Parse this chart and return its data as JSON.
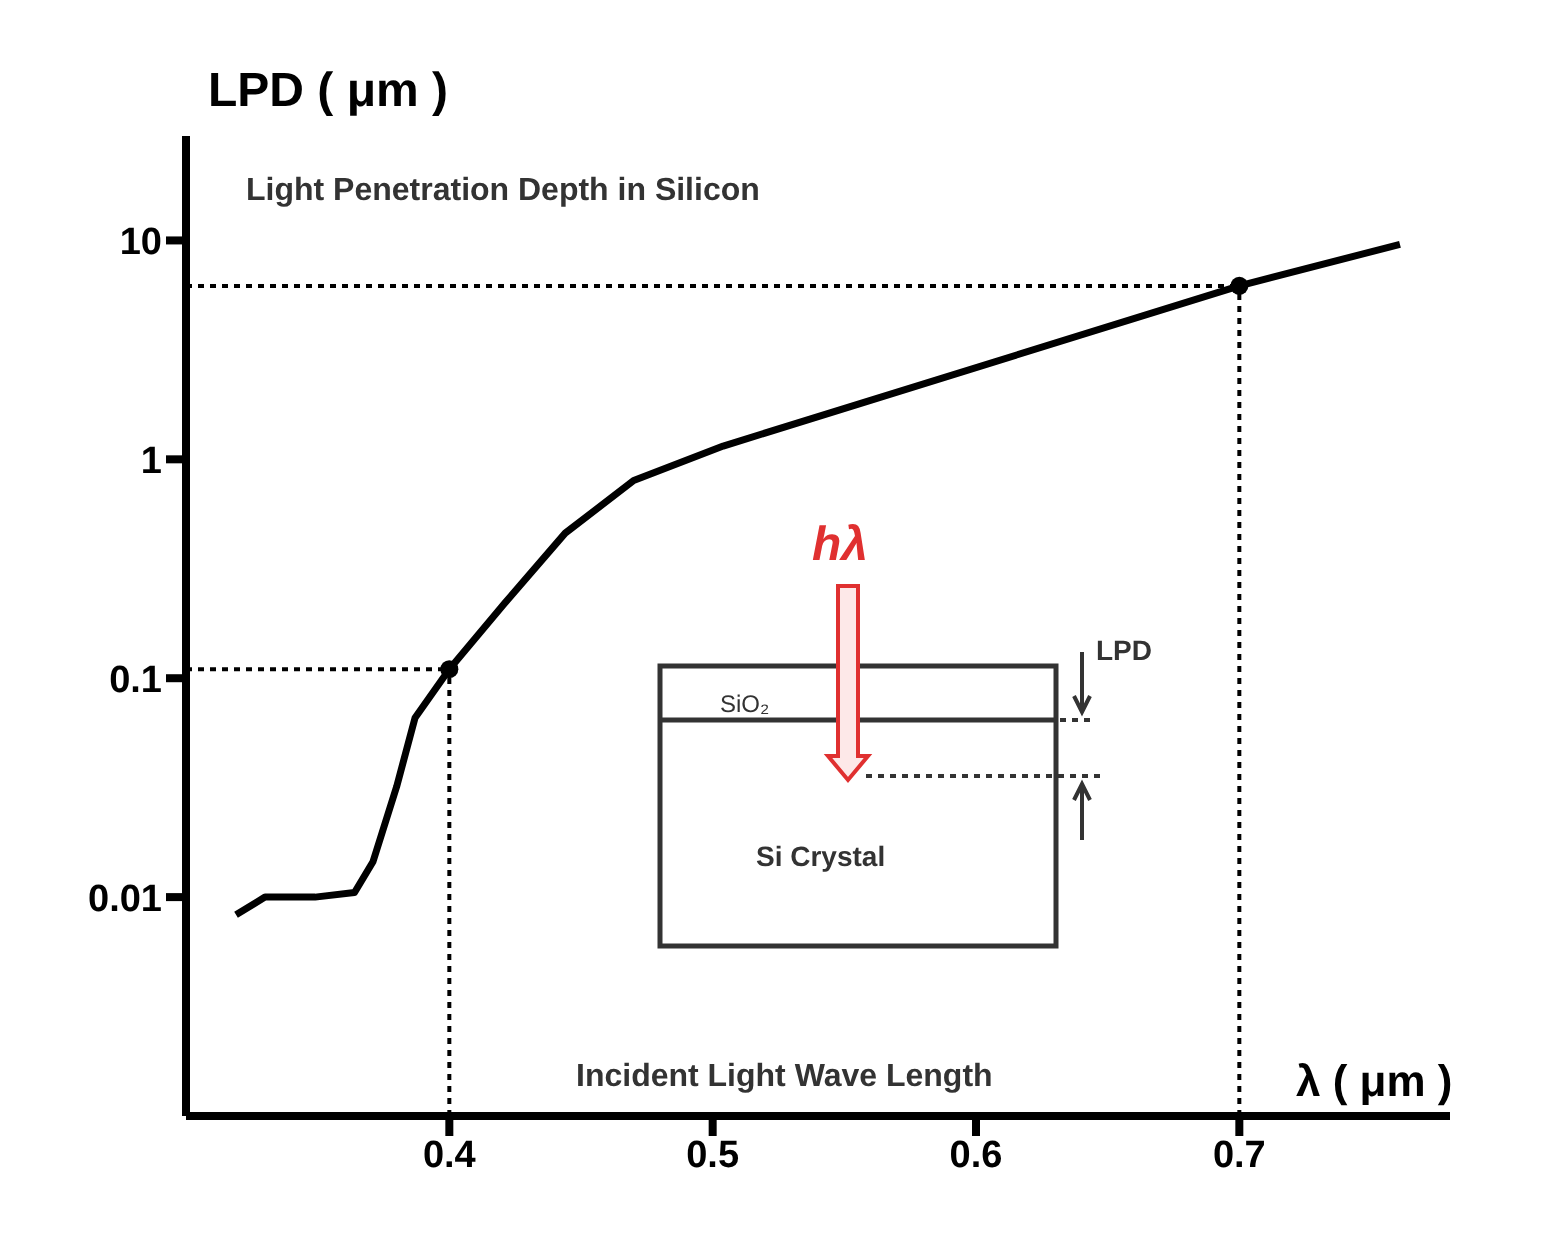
{
  "chart_data": {
    "type": "line",
    "title": "Light Penetration Depth in Silicon",
    "xlabel": "λ ( μm )",
    "ylabel": "LPD ( μm )",
    "annotations": [
      "Incident Light Wave Length",
      "hλ",
      "SiO₂",
      "LPD",
      "Si Crystal"
    ],
    "xlim": [
      0.3,
      0.78
    ],
    "xticks": [
      0.4,
      0.5,
      0.6,
      0.7
    ],
    "ylim": [
      0.001,
      30
    ],
    "yticks": [
      0.01,
      0.1,
      1,
      10
    ],
    "log": "y",
    "marker": "none",
    "line_style": "solid",
    "series": [
      {
        "type": "line",
        "color": "#000000",
        "x": [
          0.319,
          0.33,
          0.349,
          0.364,
          0.371,
          0.38,
          0.387,
          0.4,
          0.421,
          0.444,
          0.47,
          0.504,
          0.7,
          0.761
        ],
        "values": [
          0.0083,
          0.01,
          0.01,
          0.0105,
          0.0145,
          0.032,
          0.066,
          0.11,
          0.22,
          0.46,
          0.8,
          1.15,
          6.2,
          9.6
        ]
      },
      {
        "type": "scatter",
        "color": "#000000",
        "marker": "circle",
        "x": [
          0.4,
          0.7
        ],
        "values": [
          0.11,
          6.2
        ]
      }
    ],
    "ref_lines": [
      {
        "axis": "x",
        "value": 0.4,
        "line_style": "dotted",
        "color": "#000000"
      },
      {
        "axis": "x",
        "value": 0.7,
        "line_style": "dotted",
        "color": "#000000"
      },
      {
        "axis": "y",
        "value": 0.11,
        "line_style": "dotted",
        "color": "#000000"
      },
      {
        "axis": "y",
        "value": 6.2,
        "line_style": "dotted",
        "color": "#000000"
      }
    ]
  }
}
